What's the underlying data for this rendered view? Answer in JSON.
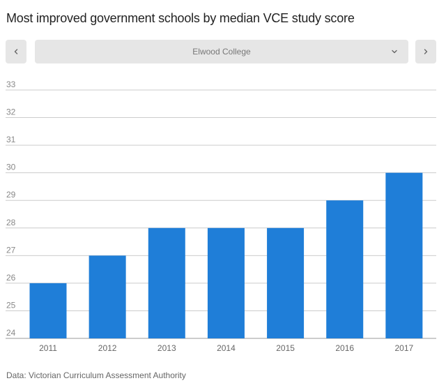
{
  "title": "Most improved government schools by median VCE study score",
  "navigation": {
    "prev_icon": "chevron-left-icon",
    "next_icon": "chevron-right-icon",
    "dropdown_icon": "chevron-down-icon",
    "selected_school": "Elwood College"
  },
  "chart_data": {
    "type": "bar",
    "title": "Most improved government schools by median VCE study score",
    "series_name": "Elwood College",
    "categories": [
      "2011",
      "2012",
      "2013",
      "2014",
      "2015",
      "2016",
      "2017"
    ],
    "values": [
      26,
      27,
      28,
      28,
      28,
      29,
      30
    ],
    "ylim": [
      24,
      33
    ],
    "yticks": [
      "24",
      "25",
      "26",
      "27",
      "28",
      "29",
      "30",
      "31",
      "32",
      "33"
    ],
    "xlabel": "",
    "ylabel": "",
    "grid": true,
    "bar_color": "#1f7ed8",
    "grid_color": "#cccccc"
  },
  "source": "Data: Victorian Curriculum Assessment Authority"
}
